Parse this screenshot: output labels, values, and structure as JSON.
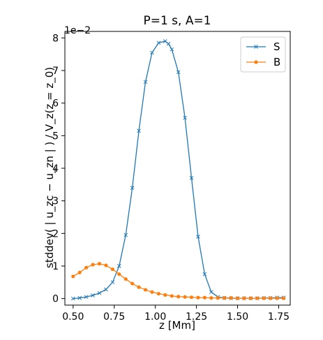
{
  "chart_data": {
    "type": "line",
    "title": "P=1 s, A=1",
    "xlabel": "z [Mm]",
    "ylabel": "stddev( | u_zc − u_zn | ) / V_z(z = z_0)",
    "y_offset_label": "1e−2",
    "xlim": [
      0.45,
      1.82
    ],
    "ylim": [
      -0.2,
      8.2
    ],
    "x_ticks": [
      0.5,
      0.75,
      1.0,
      1.25,
      1.5,
      1.75
    ],
    "x_tick_labels": [
      "0.50",
      "0.75",
      "1.00",
      "1.25",
      "1.50",
      "1.75"
    ],
    "y_ticks": [
      0,
      1,
      2,
      3,
      4,
      5,
      6,
      7,
      8
    ],
    "y_tick_labels": [
      "0",
      "1",
      "2",
      "3",
      "4",
      "5",
      "6",
      "7",
      "8"
    ],
    "legend_position": "top-right",
    "grid": false,
    "series": [
      {
        "name": "S",
        "color": "#1f77b4",
        "marker": "x",
        "x": [
          0.5,
          0.54,
          0.58,
          0.62,
          0.66,
          0.7,
          0.74,
          0.78,
          0.82,
          0.86,
          0.9,
          0.94,
          0.98,
          1.02,
          1.06,
          1.08,
          1.1,
          1.14,
          1.18,
          1.22,
          1.26,
          1.3,
          1.34,
          1.38,
          1.42,
          1.46,
          1.5,
          1.54,
          1.58,
          1.62,
          1.66,
          1.7,
          1.74,
          1.78
        ],
        "y": [
          0.0,
          0.02,
          0.05,
          0.1,
          0.17,
          0.28,
          0.5,
          1.0,
          1.95,
          3.4,
          5.15,
          6.65,
          7.55,
          7.85,
          7.9,
          7.82,
          7.65,
          6.95,
          5.55,
          3.7,
          1.9,
          0.75,
          0.2,
          0.05,
          0.02,
          0.01,
          0.01,
          0.01,
          0.01,
          0.01,
          0.02,
          0.02,
          0.03,
          0.03
        ]
      },
      {
        "name": "B",
        "color": "#ff7f0e",
        "marker": "o",
        "x": [
          0.5,
          0.54,
          0.58,
          0.62,
          0.66,
          0.7,
          0.74,
          0.78,
          0.82,
          0.86,
          0.9,
          0.94,
          0.98,
          1.02,
          1.06,
          1.1,
          1.14,
          1.18,
          1.22,
          1.26,
          1.3,
          1.34,
          1.38,
          1.42,
          1.46,
          1.5,
          1.54,
          1.58,
          1.62,
          1.66,
          1.7,
          1.74,
          1.78
        ],
        "y": [
          0.68,
          0.8,
          0.95,
          1.04,
          1.07,
          1.02,
          0.9,
          0.75,
          0.6,
          0.46,
          0.35,
          0.27,
          0.2,
          0.15,
          0.11,
          0.08,
          0.06,
          0.05,
          0.04,
          0.03,
          0.03,
          0.02,
          0.02,
          0.02,
          0.02,
          0.01,
          0.01,
          0.01,
          0.01,
          0.01,
          0.01,
          0.01,
          0.01
        ]
      }
    ]
  }
}
